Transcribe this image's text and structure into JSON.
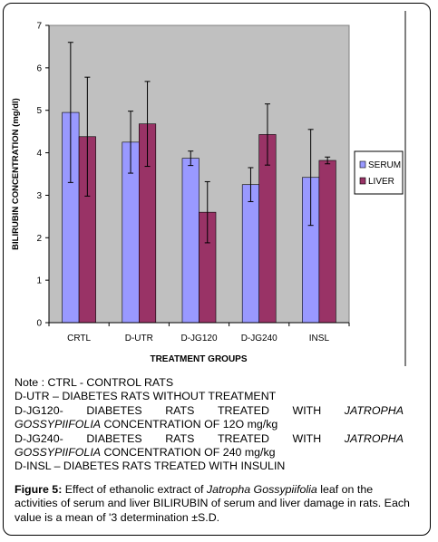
{
  "chart_data": {
    "type": "bar",
    "categories": [
      "CRTL",
      "D-UTR",
      "D-JG120",
      "D-JG240",
      "INSL"
    ],
    "series": [
      {
        "name": "SERUM",
        "color": "#9999ff",
        "values": [
          4.95,
          4.25,
          3.87,
          3.25,
          3.42
        ],
        "errors": [
          1.65,
          0.73,
          0.17,
          0.4,
          1.13
        ]
      },
      {
        "name": "LIVER",
        "color": "#993366",
        "values": [
          4.38,
          4.68,
          2.6,
          4.43,
          3.82
        ],
        "errors": [
          1.4,
          1.0,
          0.72,
          0.72,
          0.08
        ]
      }
    ],
    "xlabel": "TREATMENT GROUPS",
    "ylabel": "BILIRUBIN CONCENTRATION (mg/dl)",
    "ylim": [
      0,
      7
    ],
    "yticks": [
      "0",
      "1",
      "2",
      "3",
      "4",
      "5",
      "6",
      "7"
    ],
    "plot_background": "#c0c0c0",
    "grid": false,
    "legend_position": "right"
  },
  "notes": {
    "line1": "Note : CTRL - CONTROL RATS",
    "line2": "D-UTR – DIABETES RATS WITHOUT TREATMENT",
    "line3_words": [
      "D-JG120-",
      "DIABETES",
      "RATS",
      "TREATED",
      "WITH",
      "JATROPHA"
    ],
    "line4_italic": "GOSSYPIIFOLIA",
    "line4_rest": " CONCENTRATION OF 12O mg/kg",
    "line5_words": [
      "D-JG240-",
      "DIABETES",
      "RATS",
      "TREATED",
      "WITH",
      "JATROPHA"
    ],
    "line6_italic": "GOSSYPIIFOLIA",
    "line6_rest": " CONCENTRATION OF 240 mg/kg",
    "line7": "D-INSL – DIABETES RATS TREATED WITH INSULIN"
  },
  "caption": {
    "label": "Figure 5:",
    "text1": " Effect of ethanolic extract of ",
    "italic": "Jatropha Gossypiifolia",
    "text2": " leaf on the activities of serum and liver BILIRUBIN of serum and liver damage in rats. Each value is a mean of '3 determination ±S.D."
  }
}
